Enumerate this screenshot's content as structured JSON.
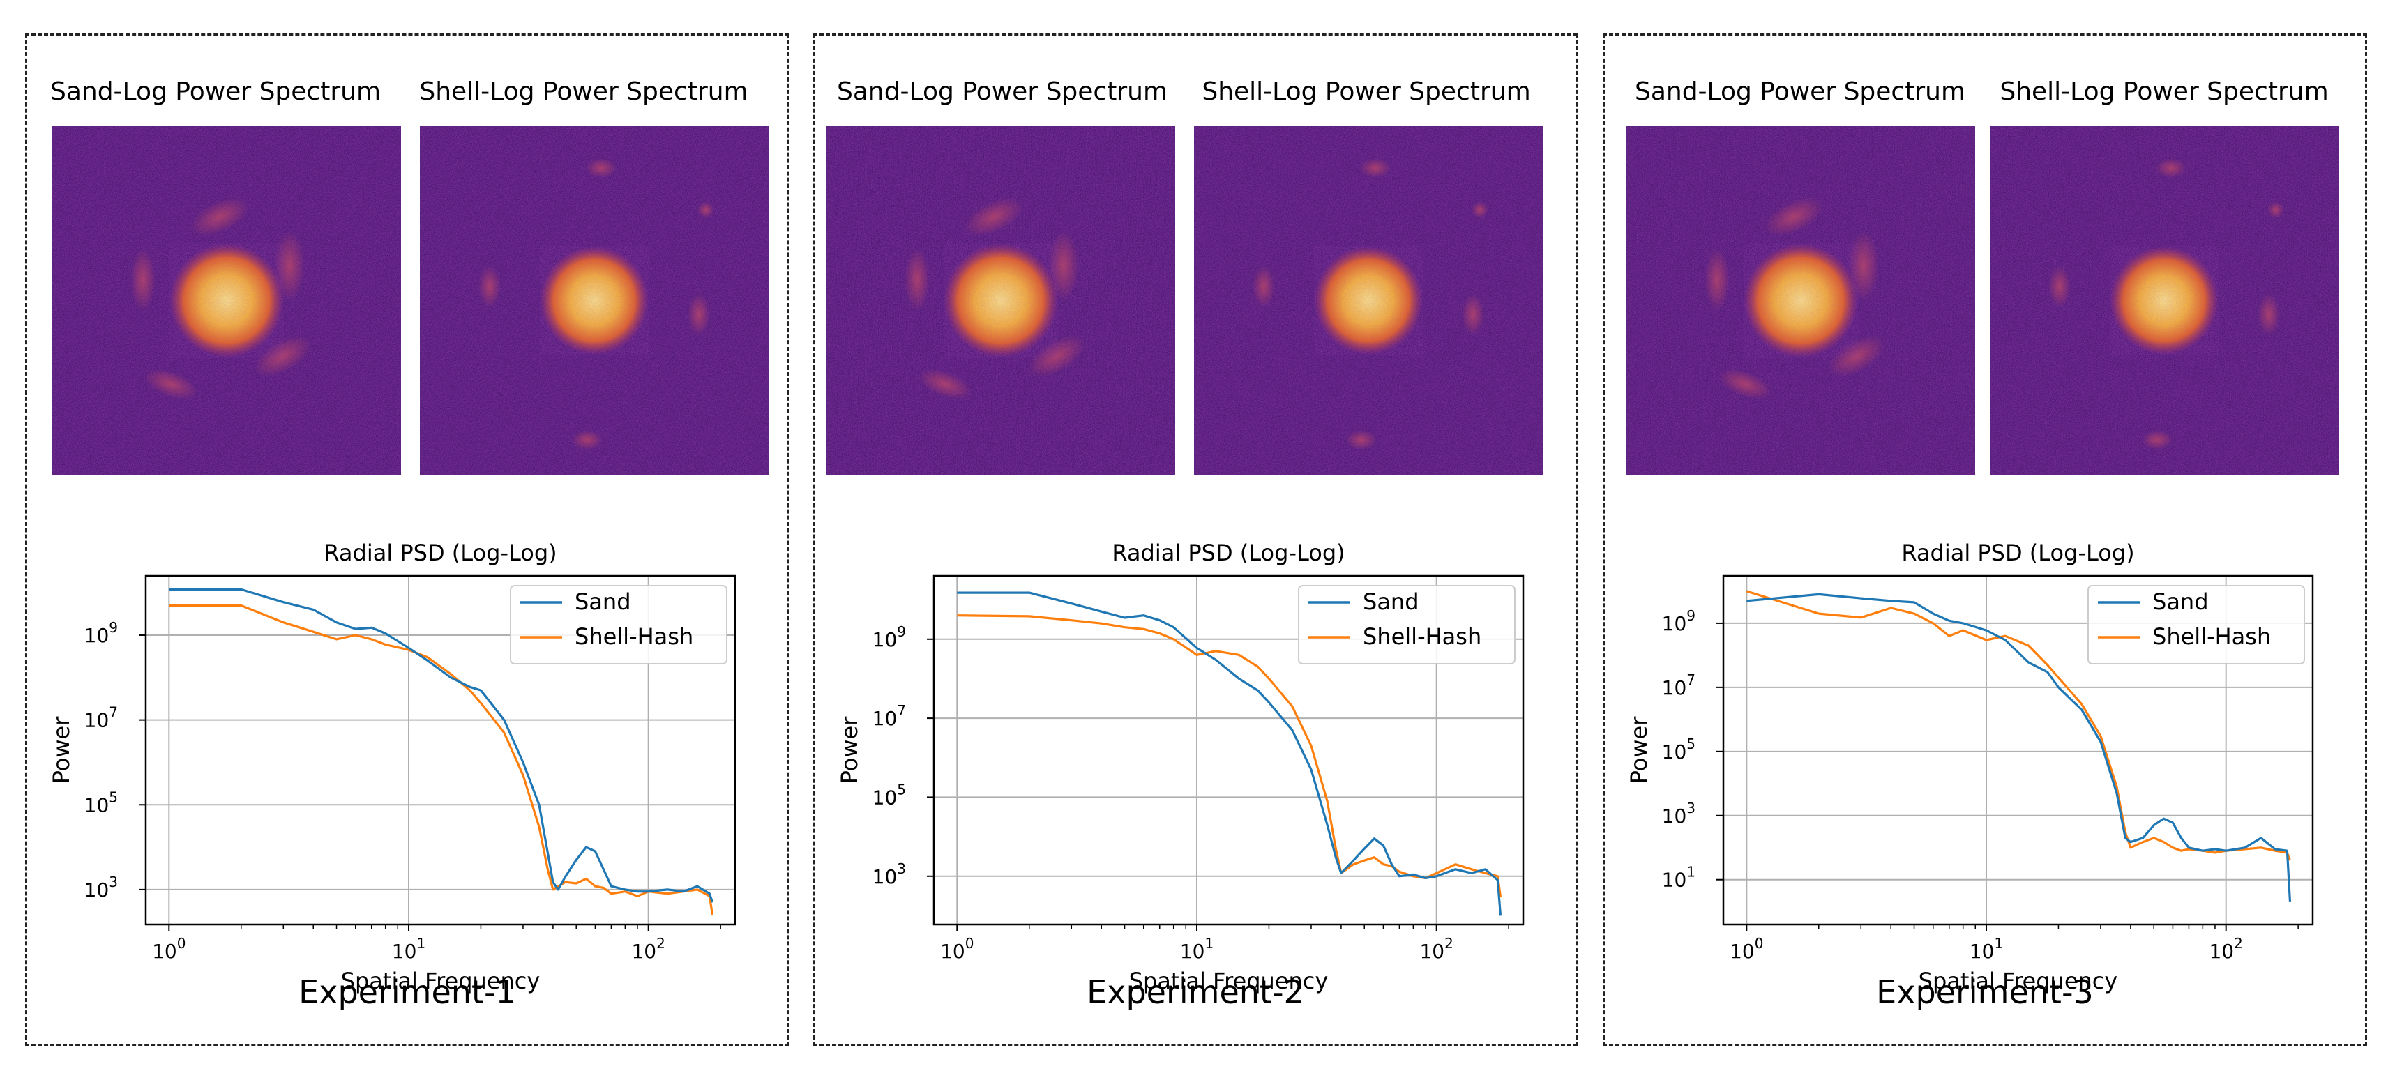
{
  "panels": [
    {
      "sand_title": "Sand-Log Power Spectrum",
      "shell_title": "Shell-Log Power Spectrum",
      "label": "Experiment-1"
    },
    {
      "sand_title": "Sand-Log Power Spectrum",
      "shell_title": "Shell-Log Power Spectrum",
      "label": "Experiment-2"
    },
    {
      "sand_title": "Sand-Log Power Spectrum",
      "shell_title": "Shell-Log Power Spectrum",
      "label": "Experiment-3"
    }
  ],
  "colors": {
    "sand": "#1f77b4",
    "shell": "#ff7f0e",
    "spectrum_bg": "#4a1670",
    "spectrum_core": "#fbe28a"
  },
  "chart_data": [
    {
      "type": "line",
      "title": "Radial PSD (Log-Log)",
      "xlabel": "Spatial Frequency",
      "ylabel": "Power",
      "xscale": "log",
      "yscale": "log",
      "xlim": [
        0.8,
        230
      ],
      "ylim": [
        150,
        25000000000.0
      ],
      "xticks": [
        {
          "v": 1,
          "b": "10",
          "e": "0"
        },
        {
          "v": 10,
          "b": "10",
          "e": "1"
        },
        {
          "v": 100,
          "b": "10",
          "e": "2"
        }
      ],
      "yticks": [
        {
          "v": 1000,
          "b": "10",
          "e": "3"
        },
        {
          "v": 100000,
          "b": "10",
          "e": "5"
        },
        {
          "v": 10000000,
          "b": "10",
          "e": "7"
        },
        {
          "v": 1000000000,
          "b": "10",
          "e": "9"
        }
      ],
      "grid": true,
      "legend": "top-right",
      "series": [
        {
          "name": "Sand",
          "x": [
            1,
            2,
            3,
            4,
            5,
            6,
            7,
            8,
            10,
            12,
            15,
            18,
            20,
            25,
            30,
            35,
            40,
            42,
            45,
            50,
            55,
            60,
            65,
            70,
            80,
            90,
            100,
            120,
            140,
            160,
            180,
            185
          ],
          "y": [
            12000000000.0,
            12000000000.0,
            6000000000.0,
            4000000000.0,
            2000000000.0,
            1400000000.0,
            1500000000.0,
            1100000000.0,
            500000000.0,
            250000000.0,
            100000000.0,
            60000000.0,
            50000000.0,
            10000000.0,
            1000000.0,
            100000.0,
            1500,
            1000,
            2000,
            5000,
            10000,
            8000,
            3000,
            1200,
            1000,
            900,
            900,
            1000,
            900,
            1200,
            800,
            500
          ]
        },
        {
          "name": "Shell-Hash",
          "x": [
            1,
            2,
            3,
            4,
            5,
            6,
            7,
            8,
            10,
            12,
            15,
            18,
            20,
            25,
            30,
            35,
            38,
            40,
            45,
            50,
            55,
            60,
            65,
            70,
            80,
            90,
            100,
            120,
            140,
            160,
            180,
            185
          ],
          "y": [
            5000000000.0,
            5000000000.0,
            2000000000.0,
            1200000000.0,
            800000000.0,
            1000000000.0,
            800000000.0,
            600000000.0,
            450000000.0,
            300000000.0,
            120000000.0,
            50000000.0,
            25000000.0,
            5000000.0,
            500000.0,
            30000.0,
            3000,
            1000,
            1500,
            1400,
            1800,
            1200,
            1100,
            800,
            900,
            700,
            900,
            800,
            900,
            1000,
            700,
            250
          ]
        }
      ]
    },
    {
      "type": "line",
      "title": "Radial PSD (Log-Log)",
      "xlabel": "Spatial Frequency",
      "ylabel": "Power",
      "xscale": "log",
      "yscale": "log",
      "xlim": [
        0.8,
        230
      ],
      "ylim": [
        60,
        40000000000.0
      ],
      "xticks": [
        {
          "v": 1,
          "b": "10",
          "e": "0"
        },
        {
          "v": 10,
          "b": "10",
          "e": "1"
        },
        {
          "v": 100,
          "b": "10",
          "e": "2"
        }
      ],
      "yticks": [
        {
          "v": 1000,
          "b": "10",
          "e": "3"
        },
        {
          "v": 100000,
          "b": "10",
          "e": "5"
        },
        {
          "v": 10000000,
          "b": "10",
          "e": "7"
        },
        {
          "v": 1000000000,
          "b": "10",
          "e": "9"
        }
      ],
      "grid": true,
      "legend": "top-right",
      "series": [
        {
          "name": "Sand",
          "x": [
            1,
            2,
            3,
            4,
            5,
            6,
            7,
            8,
            10,
            12,
            15,
            18,
            20,
            25,
            30,
            35,
            38,
            40,
            45,
            50,
            55,
            60,
            65,
            70,
            80,
            90,
            100,
            120,
            140,
            160,
            180,
            185
          ],
          "y": [
            15000000000.0,
            15000000000.0,
            8000000000.0,
            5000000000.0,
            3500000000.0,
            4000000000.0,
            3000000000.0,
            2000000000.0,
            600000000.0,
            300000000.0,
            100000000.0,
            50000000.0,
            25000000.0,
            5000000.0,
            500000.0,
            20000.0,
            3000,
            1200,
            2500,
            5000,
            9000,
            6000,
            2000,
            1000,
            1100,
            900,
            1000,
            1500,
            1200,
            1500,
            800,
            100
          ]
        },
        {
          "name": "Shell-Hash",
          "x": [
            1,
            2,
            3,
            4,
            5,
            6,
            7,
            8,
            10,
            12,
            15,
            18,
            20,
            25,
            30,
            35,
            38,
            40,
            45,
            50,
            55,
            60,
            65,
            70,
            80,
            90,
            100,
            120,
            140,
            160,
            180,
            185
          ],
          "y": [
            4000000000.0,
            3800000000.0,
            3000000000.0,
            2500000000.0,
            2000000000.0,
            1800000000.0,
            1400000000.0,
            1000000000.0,
            400000000.0,
            500000000.0,
            400000000.0,
            200000000.0,
            100000000.0,
            20000000.0,
            2000000.0,
            80000.0,
            5000,
            1200,
            2000,
            2500,
            3000,
            2000,
            1800,
            1300,
            1000,
            900,
            1200,
            2000,
            1500,
            1200,
            1000,
            300
          ]
        }
      ]
    },
    {
      "type": "line",
      "title": "Radial PSD (Log-Log)",
      "xlabel": "Spatial Frequency",
      "ylabel": "Power",
      "xscale": "log",
      "yscale": "log",
      "xlim": [
        0.8,
        230
      ],
      "ylim": [
        0.4,
        30000000000.0
      ],
      "xticks": [
        {
          "v": 1,
          "b": "10",
          "e": "0"
        },
        {
          "v": 10,
          "b": "10",
          "e": "1"
        },
        {
          "v": 100,
          "b": "10",
          "e": "2"
        }
      ],
      "yticks": [
        {
          "v": 10,
          "b": "10",
          "e": "1"
        },
        {
          "v": 1000,
          "b": "10",
          "e": "3"
        },
        {
          "v": 100000,
          "b": "10",
          "e": "5"
        },
        {
          "v": 10000000,
          "b": "10",
          "e": "7"
        },
        {
          "v": 1000000000,
          "b": "10",
          "e": "9"
        }
      ],
      "grid": true,
      "legend": "top-right",
      "series": [
        {
          "name": "Sand",
          "x": [
            1,
            2,
            3,
            4,
            5,
            6,
            7,
            8,
            10,
            12,
            15,
            18,
            20,
            25,
            30,
            35,
            38,
            40,
            45,
            50,
            55,
            60,
            65,
            70,
            80,
            90,
            100,
            120,
            140,
            160,
            180,
            185
          ],
          "y": [
            5000000000.0,
            8000000000.0,
            6000000000.0,
            5000000000.0,
            4500000000.0,
            2000000000.0,
            1200000000.0,
            1000000000.0,
            600000000.0,
            300000000.0,
            60000000.0,
            30000000.0,
            10000000.0,
            2000000.0,
            200000.0,
            5000,
            200,
            150,
            200,
            500,
            800,
            600,
            200,
            100,
            80,
            90,
            80,
            100,
            200,
            90,
            80,
            2
          ]
        },
        {
          "name": "Shell-Hash",
          "x": [
            1,
            2,
            3,
            4,
            5,
            6,
            7,
            8,
            10,
            12,
            15,
            18,
            20,
            25,
            30,
            35,
            38,
            40,
            45,
            50,
            55,
            60,
            65,
            70,
            80,
            90,
            100,
            120,
            140,
            160,
            180,
            185
          ],
          "y": [
            10000000000.0,
            2000000000.0,
            1500000000.0,
            3000000000.0,
            2000000000.0,
            1000000000.0,
            400000000.0,
            600000000.0,
            300000000.0,
            400000000.0,
            200000000.0,
            50000000.0,
            20000000.0,
            3000000.0,
            300000.0,
            8000,
            300,
            100,
            150,
            200,
            150,
            100,
            80,
            90,
            80,
            70,
            80,
            90,
            100,
            80,
            70,
            40
          ]
        }
      ]
    }
  ]
}
